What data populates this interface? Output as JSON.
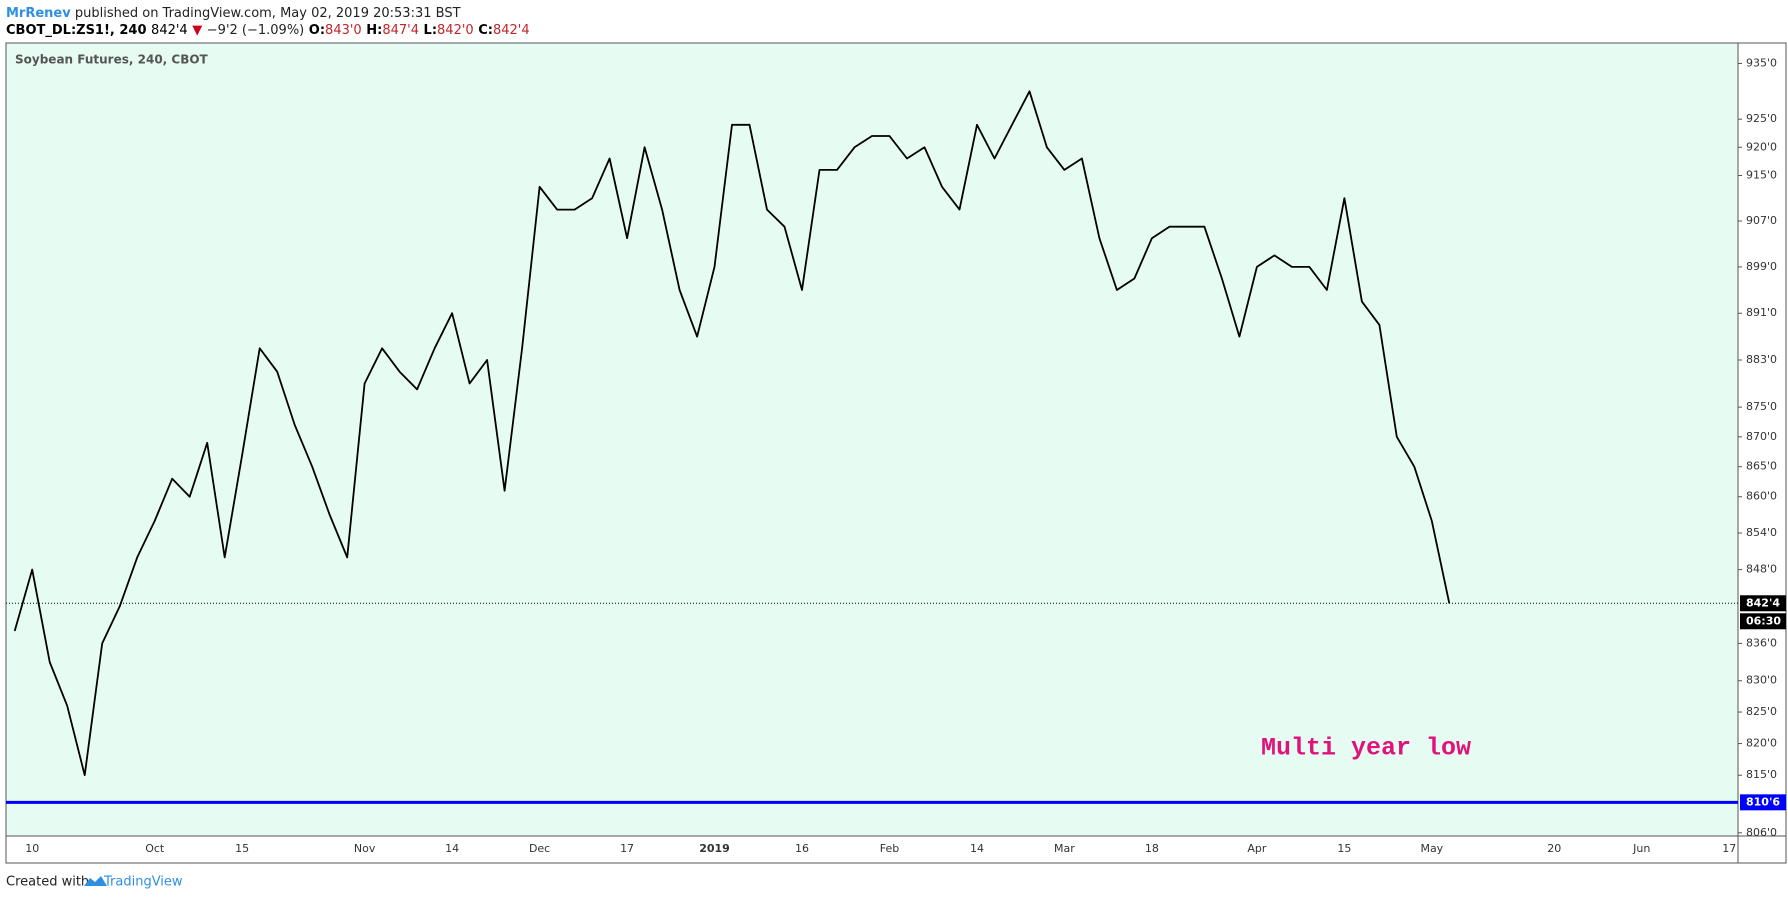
{
  "header": {
    "author": "MrRenev",
    "published": "published on TradingView.com, May 02, 2019 20:53:31 BST",
    "symbol": "CBOT_DL:ZS1!, 240",
    "last": "842'4",
    "arrow": "▼",
    "change": "−9'2 (−1.09%)",
    "ohlc": [
      {
        "label": "O:",
        "value": "843'0"
      },
      {
        "label": "H:",
        "value": "847'4"
      },
      {
        "label": "L:",
        "value": "842'0"
      },
      {
        "label": "C:",
        "value": "842'4"
      }
    ]
  },
  "chart_data": {
    "type": "line",
    "title": "Soybean Futures, 240, CBOT",
    "log_scale": true,
    "grid": false,
    "categories": [
      null,
      "10",
      null,
      null,
      null,
      null,
      null,
      null,
      "Oct",
      null,
      null,
      null,
      null,
      "15",
      null,
      null,
      null,
      null,
      null,
      null,
      "Nov",
      null,
      null,
      null,
      null,
      "14",
      null,
      null,
      null,
      null,
      "Dec",
      null,
      null,
      null,
      null,
      "17",
      null,
      null,
      null,
      null,
      "2019",
      null,
      null,
      null,
      null,
      "16",
      null,
      null,
      null,
      null,
      "Feb",
      null,
      null,
      null,
      null,
      "14",
      null,
      null,
      null,
      null,
      "Mar",
      null,
      null,
      null,
      null,
      "18",
      null,
      null,
      null,
      null,
      null,
      "Apr",
      null,
      null,
      null,
      null,
      "15",
      null,
      null,
      null,
      null,
      "May",
      null,
      null,
      null,
      null,
      null,
      null,
      "20",
      null,
      null,
      null,
      null,
      "Jun",
      null,
      null,
      null,
      null,
      "17"
    ],
    "series": [
      {
        "name": "ZS1!",
        "color": "#000000",
        "values": [
          838,
          848,
          833,
          826,
          815,
          836,
          842,
          850,
          856,
          863,
          860,
          869,
          850,
          867,
          885,
          881,
          872,
          865,
          857,
          850,
          879,
          885,
          881,
          878,
          885,
          891,
          879,
          883,
          861,
          885,
          913,
          909,
          909,
          911,
          918,
          904,
          920,
          909,
          895,
          887,
          899,
          924,
          924,
          909,
          906,
          895,
          916,
          916,
          920,
          922,
          922,
          918,
          920,
          913,
          909,
          924,
          918,
          924,
          930,
          920,
          916,
          918,
          904,
          895,
          897,
          904,
          906,
          906,
          906,
          897,
          887,
          899,
          901,
          899,
          899,
          895,
          911,
          893,
          889,
          870,
          865,
          856,
          842.5,
          null,
          null,
          null,
          null,
          null,
          null,
          null,
          null,
          null,
          null,
          null,
          null,
          null,
          null,
          null,
          null
        ]
      }
    ],
    "ylim": [
      805.5,
      938.7
    ],
    "yticks": [
      {
        "value": 935,
        "label": "935'0"
      },
      {
        "value": 925,
        "label": "925'0"
      },
      {
        "value": 920,
        "label": "920'0"
      },
      {
        "value": 915,
        "label": "915'0"
      },
      {
        "value": 907,
        "label": "907'0"
      },
      {
        "value": 899,
        "label": "899'0"
      },
      {
        "value": 891,
        "label": "891'0"
      },
      {
        "value": 883,
        "label": "883'0"
      },
      {
        "value": 875,
        "label": "875'0"
      },
      {
        "value": 870,
        "label": "870'0"
      },
      {
        "value": 865,
        "label": "865'0"
      },
      {
        "value": 860,
        "label": "860'0"
      },
      {
        "value": 854,
        "label": "854'0"
      },
      {
        "value": 848,
        "label": "848'0"
      },
      {
        "value": 836,
        "label": "836'0"
      },
      {
        "value": 830,
        "label": "830'0"
      },
      {
        "value": 825,
        "label": "825'0"
      },
      {
        "value": 820,
        "label": "820'0"
      },
      {
        "value": 815,
        "label": "815'0"
      },
      {
        "value": 806,
        "label": "806'0"
      }
    ],
    "last_price": {
      "value": 842.5,
      "label": "842'4",
      "countdown": "06:30"
    },
    "hlines": [
      {
        "value": 810.75,
        "label": "810'6",
        "color": "#0000ff"
      }
    ],
    "annotations": [
      {
        "text": "Multi year low",
        "color": "#e0127c"
      }
    ]
  },
  "footer": {
    "created": "Created with",
    "brand": "TradingView"
  }
}
